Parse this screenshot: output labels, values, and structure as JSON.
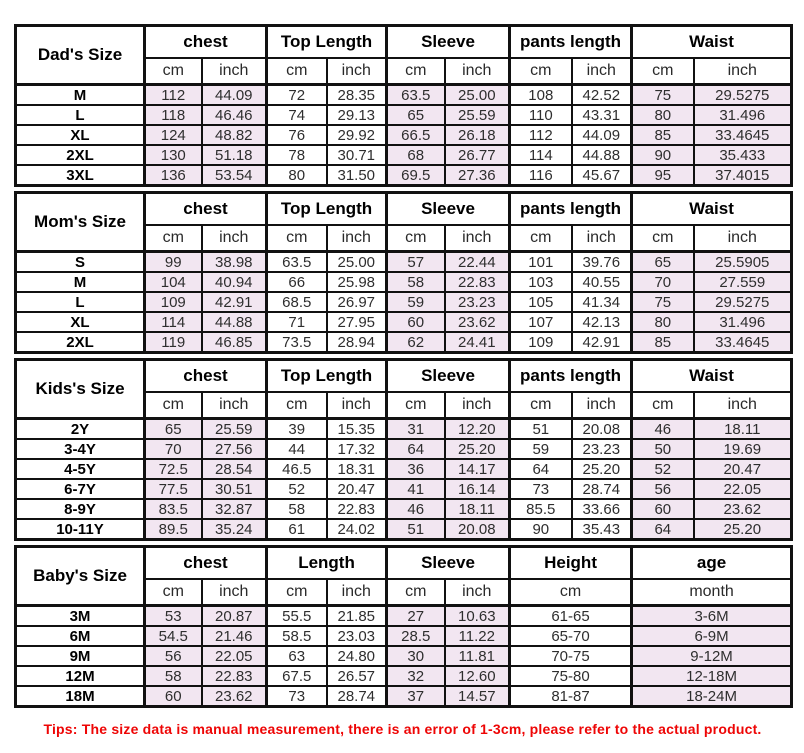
{
  "tip": "Tips: The size data is manual measurement, there is an error of 1-3cm, please refer to the actual product.",
  "colors": {
    "shade": "#f2e6f1",
    "border": "#111111",
    "tip": "#ee0505"
  },
  "sections": [
    {
      "title": "Dad's Size",
      "groups": [
        {
          "label": "chest",
          "subs": [
            "cm",
            "inch"
          ],
          "shaded": true
        },
        {
          "label": "Top Length",
          "subs": [
            "cm",
            "inch"
          ],
          "shaded": false
        },
        {
          "label": "Sleeve",
          "subs": [
            "cm",
            "inch"
          ],
          "shaded": true
        },
        {
          "label": "pants length",
          "subs": [
            "cm",
            "inch"
          ],
          "shaded": false
        },
        {
          "label": "Waist",
          "subs": [
            "cm",
            "inch"
          ],
          "shaded": true
        }
      ],
      "rows": [
        {
          "size": "M",
          "values": [
            "112",
            "44.09",
            "72",
            "28.35",
            "63.5",
            "25.00",
            "108",
            "42.52",
            "75",
            "29.5275"
          ]
        },
        {
          "size": "L",
          "values": [
            "118",
            "46.46",
            "74",
            "29.13",
            "65",
            "25.59",
            "110",
            "43.31",
            "80",
            "31.496"
          ]
        },
        {
          "size": "XL",
          "values": [
            "124",
            "48.82",
            "76",
            "29.92",
            "66.5",
            "26.18",
            "112",
            "44.09",
            "85",
            "33.4645"
          ]
        },
        {
          "size": "2XL",
          "values": [
            "130",
            "51.18",
            "78",
            "30.71",
            "68",
            "26.77",
            "114",
            "44.88",
            "90",
            "35.433"
          ]
        },
        {
          "size": "3XL",
          "values": [
            "136",
            "53.54",
            "80",
            "31.50",
            "69.5",
            "27.36",
            "116",
            "45.67",
            "95",
            "37.4015"
          ]
        }
      ]
    },
    {
      "title": "Mom's Size",
      "groups": [
        {
          "label": "chest",
          "subs": [
            "cm",
            "inch"
          ],
          "shaded": true
        },
        {
          "label": "Top Length",
          "subs": [
            "cm",
            "inch"
          ],
          "shaded": false
        },
        {
          "label": "Sleeve",
          "subs": [
            "cm",
            "inch"
          ],
          "shaded": true
        },
        {
          "label": "pants length",
          "subs": [
            "cm",
            "inch"
          ],
          "shaded": false
        },
        {
          "label": "Waist",
          "subs": [
            "cm",
            "inch"
          ],
          "shaded": true
        }
      ],
      "rows": [
        {
          "size": "S",
          "values": [
            "99",
            "38.98",
            "63.5",
            "25.00",
            "57",
            "22.44",
            "101",
            "39.76",
            "65",
            "25.5905"
          ]
        },
        {
          "size": "M",
          "values": [
            "104",
            "40.94",
            "66",
            "25.98",
            "58",
            "22.83",
            "103",
            "40.55",
            "70",
            "27.559"
          ]
        },
        {
          "size": "L",
          "values": [
            "109",
            "42.91",
            "68.5",
            "26.97",
            "59",
            "23.23",
            "105",
            "41.34",
            "75",
            "29.5275"
          ]
        },
        {
          "size": "XL",
          "values": [
            "114",
            "44.88",
            "71",
            "27.95",
            "60",
            "23.62",
            "107",
            "42.13",
            "80",
            "31.496"
          ]
        },
        {
          "size": "2XL",
          "values": [
            "119",
            "46.85",
            "73.5",
            "28.94",
            "62",
            "24.41",
            "109",
            "42.91",
            "85",
            "33.4645"
          ]
        }
      ]
    },
    {
      "title": "Kids's Size",
      "groups": [
        {
          "label": "chest",
          "subs": [
            "cm",
            "inch"
          ],
          "shaded": true
        },
        {
          "label": "Top Length",
          "subs": [
            "cm",
            "inch"
          ],
          "shaded": false
        },
        {
          "label": "Sleeve",
          "subs": [
            "cm",
            "inch"
          ],
          "shaded": true
        },
        {
          "label": "pants length",
          "subs": [
            "cm",
            "inch"
          ],
          "shaded": false
        },
        {
          "label": "Waist",
          "subs": [
            "cm",
            "inch"
          ],
          "shaded": true
        }
      ],
      "rows": [
        {
          "size": "2Y",
          "values": [
            "65",
            "25.59",
            "39",
            "15.35",
            "31",
            "12.20",
            "51",
            "20.08",
            "46",
            "18.11"
          ]
        },
        {
          "size": "3-4Y",
          "values": [
            "70",
            "27.56",
            "44",
            "17.32",
            "64",
            "25.20",
            "59",
            "23.23",
            "50",
            "19.69"
          ]
        },
        {
          "size": "4-5Y",
          "values": [
            "72.5",
            "28.54",
            "46.5",
            "18.31",
            "36",
            "14.17",
            "64",
            "25.20",
            "52",
            "20.47"
          ]
        },
        {
          "size": "6-7Y",
          "values": [
            "77.5",
            "30.51",
            "52",
            "20.47",
            "41",
            "16.14",
            "73",
            "28.74",
            "56",
            "22.05"
          ]
        },
        {
          "size": "8-9Y",
          "values": [
            "83.5",
            "32.87",
            "58",
            "22.83",
            "46",
            "18.11",
            "85.5",
            "33.66",
            "60",
            "23.62"
          ]
        },
        {
          "size": "10-11Y",
          "values": [
            "89.5",
            "35.24",
            "61",
            "24.02",
            "51",
            "20.08",
            "90",
            "35.43",
            "64",
            "25.20"
          ]
        }
      ]
    },
    {
      "title": "Baby's Size",
      "groups": [
        {
          "label": "chest",
          "subs": [
            "cm",
            "inch"
          ],
          "shaded": true
        },
        {
          "label": "Length",
          "subs": [
            "cm",
            "inch"
          ],
          "shaded": false
        },
        {
          "label": "Sleeve",
          "subs": [
            "cm",
            "inch"
          ],
          "shaded": true
        },
        {
          "label": "Height",
          "subs": [
            "cm"
          ],
          "shaded": false
        },
        {
          "label": "age",
          "subs": [
            "month"
          ],
          "shaded": true
        }
      ],
      "rows": [
        {
          "size": "3M",
          "values": [
            "53",
            "20.87",
            "55.5",
            "21.85",
            "27",
            "10.63",
            "61-65",
            "3-6M"
          ]
        },
        {
          "size": "6M",
          "values": [
            "54.5",
            "21.46",
            "58.5",
            "23.03",
            "28.5",
            "11.22",
            "65-70",
            "6-9M"
          ]
        },
        {
          "size": "9M",
          "values": [
            "56",
            "22.05",
            "63",
            "24.80",
            "30",
            "11.81",
            "70-75",
            "9-12M"
          ]
        },
        {
          "size": "12M",
          "values": [
            "58",
            "22.83",
            "67.5",
            "26.57",
            "32",
            "12.60",
            "75-80",
            "12-18M"
          ]
        },
        {
          "size": "18M",
          "values": [
            "60",
            "23.62",
            "73",
            "28.74",
            "37",
            "14.57",
            "81-87",
            "18-24M"
          ]
        }
      ]
    }
  ]
}
